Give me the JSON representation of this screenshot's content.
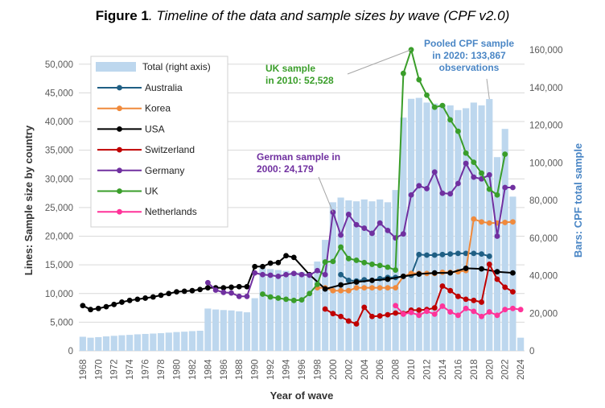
{
  "figure": {
    "label": "Figure 1",
    "caption": ". Timeline of the data and sample sizes by wave (CPF v2.0)"
  },
  "chart_data": {
    "type": "bar+line",
    "xlabel": "Year of wave",
    "ylabel_left": "Lines: Sample size by country",
    "ylabel_right": "Bars: CPF total sample",
    "ylim_left": [
      0,
      52500
    ],
    "ylim_right": [
      0,
      160000
    ],
    "yticks_left": [
      "0",
      "5,000",
      "10,000",
      "15,000",
      "20,000",
      "25,000",
      "30,000",
      "35,000",
      "40,000",
      "45,000",
      "50,000"
    ],
    "yticks_right": [
      "0",
      "20,000",
      "40,000",
      "60,000",
      "80,000",
      "100,000",
      "120,000",
      "140,000",
      "160,000"
    ],
    "xticks": [
      "1968",
      "1970",
      "1972",
      "1974",
      "1976",
      "1978",
      "1980",
      "1982",
      "1984",
      "1986",
      "1988",
      "1990",
      "1992",
      "1994",
      "1996",
      "1998",
      "2000",
      "2002",
      "2004",
      "2006",
      "2008",
      "2010",
      "2012",
      "2014",
      "2016",
      "2018",
      "2020",
      "2022",
      "2024"
    ],
    "grid": "horizontal",
    "legend_position": "top-left",
    "bar_series": {
      "name": "Total (right axis)",
      "color": "#bdd7ee",
      "x": [
        1968,
        1969,
        1970,
        1971,
        1972,
        1973,
        1974,
        1975,
        1976,
        1977,
        1978,
        1979,
        1980,
        1981,
        1982,
        1983,
        1984,
        1985,
        1986,
        1987,
        1988,
        1989,
        1990,
        1991,
        1992,
        1993,
        1994,
        1995,
        1996,
        1997,
        1998,
        1999,
        2000,
        2001,
        2002,
        2003,
        2004,
        2005,
        2006,
        2007,
        2008,
        2009,
        2010,
        2011,
        2012,
        2013,
        2014,
        2015,
        2016,
        2017,
        2018,
        2019,
        2020,
        2021,
        2022,
        2023,
        2024
      ],
      "values": [
        7500,
        7000,
        7300,
        7700,
        8000,
        8300,
        8500,
        8800,
        9000,
        9200,
        9400,
        9700,
        10000,
        10200,
        10500,
        10700,
        22500,
        22000,
        21700,
        21500,
        21000,
        20500,
        28000,
        44000,
        43500,
        43000,
        42500,
        42000,
        42000,
        41500,
        47500,
        59000,
        79000,
        81500,
        80000,
        79500,
        80500,
        79500,
        80500,
        79000,
        85500,
        124000,
        134000,
        134500,
        132000,
        131500,
        131000,
        130500,
        128000,
        129000,
        132000,
        130500,
        133867,
        103000,
        118000,
        82000,
        7000
      ]
    },
    "series": [
      {
        "name": "Australia",
        "color": "#1f5f84",
        "points": [
          [
            2001,
            13300
          ],
          [
            2002,
            12300
          ],
          [
            2003,
            12200
          ],
          [
            2004,
            12400
          ],
          [
            2005,
            12300
          ],
          [
            2006,
            12600
          ],
          [
            2007,
            12800
          ],
          [
            2008,
            12800
          ],
          [
            2009,
            13000
          ],
          [
            2010,
            13200
          ],
          [
            2011,
            16800
          ],
          [
            2012,
            16700
          ],
          [
            2013,
            16700
          ],
          [
            2014,
            16800
          ],
          [
            2015,
            16900
          ],
          [
            2016,
            17000
          ],
          [
            2017,
            17000
          ],
          [
            2018,
            17000
          ],
          [
            2019,
            16900
          ],
          [
            2020,
            16500
          ]
        ]
      },
      {
        "name": "Korea",
        "color": "#f08a3c",
        "points": [
          [
            1998,
            11000
          ],
          [
            1999,
            11000
          ],
          [
            2000,
            10500
          ],
          [
            2001,
            10500
          ],
          [
            2002,
            10500
          ],
          [
            2003,
            11000
          ],
          [
            2004,
            11000
          ],
          [
            2005,
            11000
          ],
          [
            2006,
            11000
          ],
          [
            2007,
            11000
          ],
          [
            2008,
            11000
          ],
          [
            2009,
            13000
          ],
          [
            2010,
            13500
          ],
          [
            2011,
            13500
          ],
          [
            2012,
            13500
          ],
          [
            2013,
            13500
          ],
          [
            2014,
            13700
          ],
          [
            2015,
            13700
          ],
          [
            2016,
            13800
          ],
          [
            2017,
            14000
          ],
          [
            2018,
            23000
          ],
          [
            2019,
            22500
          ],
          [
            2020,
            22300
          ],
          [
            2021,
            22300
          ],
          [
            2022,
            22400
          ],
          [
            2023,
            22500
          ]
        ]
      },
      {
        "name": "USA",
        "color": "#000000",
        "points": [
          [
            1968,
            7900
          ],
          [
            1969,
            7200
          ],
          [
            1970,
            7400
          ],
          [
            1971,
            7700
          ],
          [
            1972,
            8100
          ],
          [
            1973,
            8500
          ],
          [
            1974,
            8800
          ],
          [
            1975,
            9000
          ],
          [
            1976,
            9200
          ],
          [
            1977,
            9400
          ],
          [
            1978,
            9700
          ],
          [
            1979,
            10000
          ],
          [
            1980,
            10300
          ],
          [
            1981,
            10400
          ],
          [
            1982,
            10500
          ],
          [
            1983,
            10700
          ],
          [
            1984,
            11000
          ],
          [
            1985,
            11000
          ],
          [
            1986,
            11000
          ],
          [
            1987,
            11100
          ],
          [
            1988,
            11200
          ],
          [
            1989,
            11200
          ],
          [
            1990,
            14700
          ],
          [
            1991,
            14700
          ],
          [
            1992,
            15300
          ],
          [
            1993,
            15400
          ],
          [
            1994,
            16600
          ],
          [
            1995,
            16300
          ],
          [
            1997,
            13300
          ],
          [
            1999,
            10800
          ],
          [
            2001,
            11500
          ],
          [
            2003,
            12000
          ],
          [
            2005,
            12300
          ],
          [
            2007,
            12500
          ],
          [
            2009,
            13000
          ],
          [
            2011,
            13400
          ],
          [
            2013,
            13600
          ],
          [
            2015,
            13600
          ],
          [
            2017,
            14400
          ],
          [
            2019,
            14300
          ],
          [
            2021,
            13800
          ],
          [
            2023,
            13600
          ]
        ]
      },
      {
        "name": "Switzerland",
        "color": "#c00000",
        "points": [
          [
            1999,
            7300
          ],
          [
            2000,
            6500
          ],
          [
            2001,
            6000
          ],
          [
            2002,
            5200
          ],
          [
            2003,
            4700
          ],
          [
            2004,
            7600
          ],
          [
            2005,
            6000
          ],
          [
            2006,
            6100
          ],
          [
            2007,
            6300
          ],
          [
            2008,
            6600
          ],
          [
            2009,
            6500
          ],
          [
            2010,
            7100
          ],
          [
            2011,
            7100
          ],
          [
            2012,
            7200
          ],
          [
            2013,
            7500
          ],
          [
            2014,
            11300
          ],
          [
            2015,
            10500
          ],
          [
            2016,
            9500
          ],
          [
            2017,
            9000
          ],
          [
            2018,
            8800
          ],
          [
            2019,
            8500
          ],
          [
            2020,
            15100
          ],
          [
            2021,
            12500
          ],
          [
            2022,
            11100
          ],
          [
            2023,
            10300
          ]
        ]
      },
      {
        "name": "Germany",
        "color": "#7030a0",
        "points": [
          [
            1984,
            11900
          ],
          [
            1985,
            10600
          ],
          [
            1986,
            10200
          ],
          [
            1987,
            10100
          ],
          [
            1988,
            9500
          ],
          [
            1989,
            9500
          ],
          [
            1990,
            13600
          ],
          [
            1991,
            13300
          ],
          [
            1992,
            13200
          ],
          [
            1993,
            13000
          ],
          [
            1994,
            13300
          ],
          [
            1995,
            13500
          ],
          [
            1996,
            13300
          ],
          [
            1997,
            13200
          ],
          [
            1998,
            14000
          ],
          [
            1999,
            13300
          ],
          [
            2000,
            24179
          ],
          [
            2001,
            20200
          ],
          [
            2002,
            23800
          ],
          [
            2003,
            22000
          ],
          [
            2004,
            21400
          ],
          [
            2005,
            20500
          ],
          [
            2006,
            22300
          ],
          [
            2007,
            21000
          ],
          [
            2008,
            19700
          ],
          [
            2009,
            20400
          ],
          [
            2010,
            27200
          ],
          [
            2011,
            28800
          ],
          [
            2012,
            28300
          ],
          [
            2013,
            31200
          ],
          [
            2014,
            27500
          ],
          [
            2015,
            27400
          ],
          [
            2016,
            29200
          ],
          [
            2017,
            32700
          ],
          [
            2018,
            30300
          ],
          [
            2019,
            30000
          ],
          [
            2020,
            30700
          ],
          [
            2021,
            20000
          ],
          [
            2022,
            28500
          ],
          [
            2023,
            28500
          ]
        ]
      },
      {
        "name": "UK",
        "color": "#3a9e2a",
        "points": [
          [
            1991,
            9900
          ],
          [
            1992,
            9400
          ],
          [
            1993,
            9200
          ],
          [
            1994,
            9000
          ],
          [
            1995,
            8800
          ],
          [
            1996,
            8900
          ],
          [
            1997,
            10000
          ],
          [
            1998,
            11600
          ],
          [
            1999,
            15500
          ],
          [
            2000,
            15600
          ],
          [
            2001,
            18100
          ],
          [
            2002,
            16100
          ],
          [
            2003,
            15800
          ],
          [
            2004,
            15400
          ],
          [
            2005,
            15100
          ],
          [
            2006,
            14900
          ],
          [
            2007,
            14600
          ],
          [
            2008,
            14100
          ],
          [
            2009,
            48400
          ],
          [
            2010,
            52528
          ],
          [
            2011,
            47300
          ],
          [
            2012,
            44600
          ],
          [
            2013,
            42500
          ],
          [
            2014,
            42800
          ],
          [
            2015,
            40300
          ],
          [
            2016,
            38300
          ],
          [
            2017,
            34500
          ],
          [
            2018,
            32900
          ],
          [
            2019,
            31000
          ],
          [
            2020,
            28200
          ],
          [
            2021,
            27200
          ],
          [
            2022,
            34300
          ]
        ]
      },
      {
        "name": "Netherlands",
        "color": "#ff3399",
        "points": [
          [
            2008,
            7900
          ],
          [
            2009,
            6400
          ],
          [
            2010,
            6700
          ],
          [
            2011,
            6200
          ],
          [
            2012,
            6900
          ],
          [
            2013,
            6400
          ],
          [
            2014,
            7800
          ],
          [
            2015,
            6800
          ],
          [
            2016,
            6200
          ],
          [
            2017,
            7400
          ],
          [
            2018,
            6900
          ],
          [
            2019,
            6000
          ],
          [
            2020,
            6800
          ],
          [
            2021,
            6200
          ],
          [
            2022,
            7200
          ],
          [
            2023,
            7400
          ],
          [
            2024,
            7200
          ]
        ]
      }
    ],
    "annotations": [
      {
        "id": "uk",
        "lines": [
          "UK sample",
          "in 2010: 52,528"
        ],
        "color": "#3a9e2a",
        "x": 2010,
        "y_left": 52528
      },
      {
        "id": "pooled",
        "lines": [
          "Pooled CPF sample",
          "in 2020: 133,867",
          "observations"
        ],
        "color": "#4a86c5",
        "x": 2020,
        "y_right": 133867
      },
      {
        "id": "german",
        "lines": [
          "German sample in",
          "2000: 24,179"
        ],
        "color": "#7030a0",
        "x": 2000,
        "y_left": 24179
      }
    ]
  }
}
